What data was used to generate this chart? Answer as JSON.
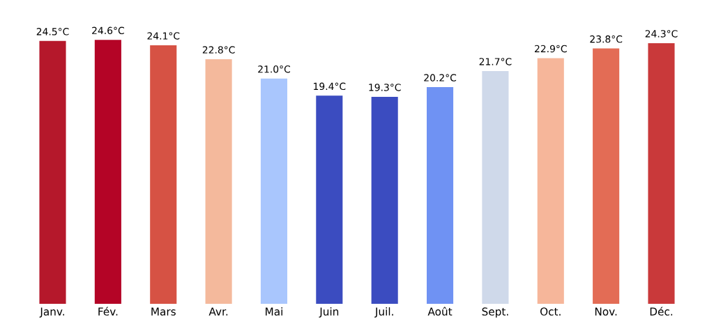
{
  "chart_data": {
    "type": "bar",
    "categories": [
      "Janv.",
      "Fév.",
      "Mars",
      "Avr.",
      "Mai",
      "Juin",
      "Juil.",
      "Août",
      "Sept.",
      "Oct.",
      "Nov.",
      "Déc."
    ],
    "values": [
      24.5,
      24.6,
      24.1,
      22.8,
      21.0,
      19.4,
      19.3,
      20.2,
      21.7,
      22.9,
      23.8,
      24.3
    ],
    "colors": [
      "#b5182b",
      "#b40426",
      "#d65244",
      "#f4b99c",
      "#a9c6fd",
      "#3b4cc0",
      "#3b4cc0",
      "#6f92f3",
      "#cfd9ea",
      "#f6b69a",
      "#e36c55",
      "#c9393a"
    ],
    "value_labels": [
      "24.5°C",
      "24.6°C",
      "24.1°C",
      "22.8°C",
      "21.0°C",
      "19.4°C",
      "19.3°C",
      "20.2°C",
      "21.7°C",
      "22.9°C",
      "23.8°C",
      "24.3°C"
    ],
    "tick_labels": "x",
    "grid": false,
    "legend": false
  }
}
